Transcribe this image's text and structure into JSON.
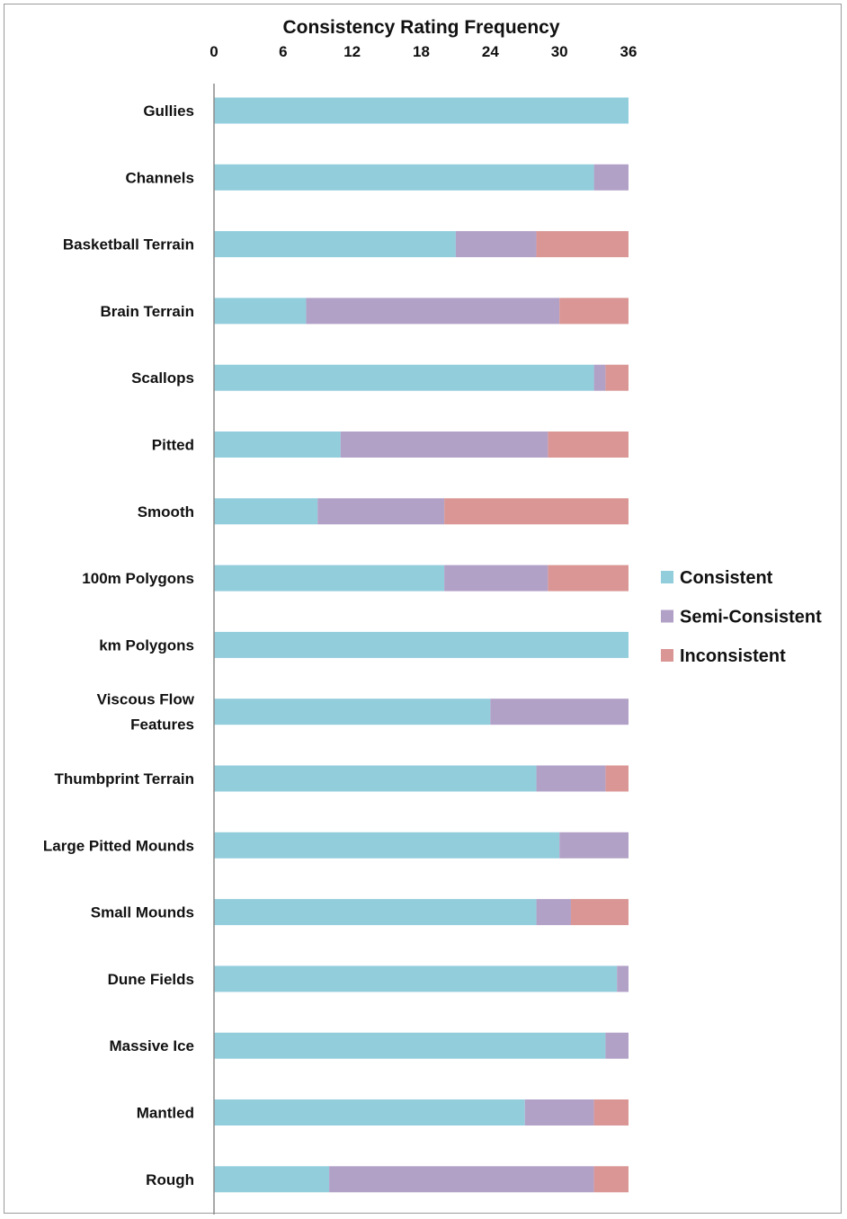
{
  "chart_data": {
    "type": "bar",
    "orientation": "horizontal",
    "stacked": true,
    "title": "Consistency Rating Frequency",
    "xlim": [
      0,
      36
    ],
    "x_ticks": [
      0,
      6,
      12,
      18,
      24,
      30,
      36
    ],
    "axis_position": "top",
    "grid": false,
    "legend_position": "right",
    "categories": [
      "Gullies",
      "Channels",
      "Basketball Terrain",
      "Brain Terrain",
      "Scallops",
      "Pitted",
      "Smooth",
      "100m Polygons",
      "km Polygons",
      "Viscous Flow Features",
      "Thumbprint Terrain",
      "Large Pitted Mounds",
      "Small Mounds",
      "Dune Fields",
      "Massive Ice",
      "Mantled",
      "Rough"
    ],
    "series": [
      {
        "name": "Consistent",
        "color": "#92cddc",
        "values": [
          36,
          33,
          21,
          8,
          33,
          11,
          9,
          20,
          36,
          24,
          28,
          30,
          28,
          35,
          34,
          27,
          10
        ]
      },
      {
        "name": "Semi-Consistent",
        "color": "#b2a1c7",
        "values": [
          0,
          3,
          7,
          22,
          1,
          18,
          11,
          9,
          0,
          12,
          6,
          6,
          3,
          1,
          2,
          6,
          23
        ]
      },
      {
        "name": "Inconsistent",
        "color": "#d99694",
        "values": [
          0,
          0,
          8,
          6,
          2,
          7,
          16,
          7,
          0,
          0,
          2,
          0,
          5,
          0,
          0,
          3,
          3
        ]
      }
    ]
  }
}
